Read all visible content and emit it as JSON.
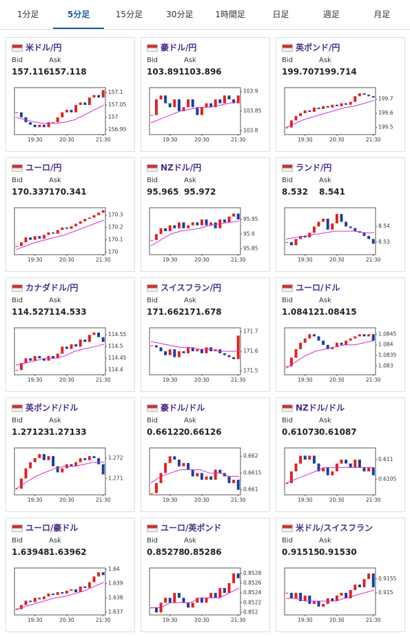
{
  "tabs": {
    "items": [
      "1分足",
      "5分足",
      "15分足",
      "30分足",
      "1時間足",
      "日足",
      "週足",
      "月足"
    ],
    "active": 1
  },
  "labels": {
    "bid": "Bid",
    "ask": "Ask"
  },
  "xticks": [
    {
      "value": 4,
      "label": "19:30"
    },
    {
      "value": 11,
      "label": "20:30"
    },
    {
      "value": 19,
      "label": "21:30"
    }
  ],
  "pairs": [
    {
      "name": "米ドル/円",
      "bid": "157.116",
      "ask": "157.118",
      "ylim": [
        156.93,
        157.12
      ],
      "yticks": [
        156.95,
        157,
        157.05,
        157.1
      ],
      "closes": [
        157.02,
        157.0,
        156.98,
        156.97,
        156.96,
        156.97,
        156.96,
        156.98,
        156.98,
        157.0,
        157.02,
        157.03,
        157.02,
        157.05,
        157.06,
        157.05,
        157.08,
        157.09,
        157.08,
        157.11
      ],
      "ma": [
        157.0,
        156.99,
        156.98,
        156.975,
        156.975,
        156.98,
        156.99,
        157.01,
        157.03,
        157.05
      ]
    },
    {
      "name": "豪ドル/円",
      "bid": "103.891",
      "ask": "103.896",
      "ylim": [
        103.79,
        103.91
      ],
      "yticks": [
        103.8,
        103.85,
        103.9
      ],
      "closes": [
        103.84,
        103.88,
        103.89,
        103.87,
        103.86,
        103.88,
        103.85,
        103.86,
        103.88,
        103.86,
        103.84,
        103.86,
        103.87,
        103.86,
        103.88,
        103.87,
        103.89,
        103.88,
        103.87,
        103.89
      ],
      "ma": [
        103.82,
        103.83,
        103.84,
        103.85,
        103.855,
        103.86,
        103.86,
        103.865,
        103.87,
        103.875
      ]
    },
    {
      "name": "英ポンド/円",
      "bid": "199.707",
      "ask": "199.714",
      "ylim": [
        199.45,
        199.78
      ],
      "yticks": [
        199.5,
        199.6,
        199.7
      ],
      "closes": [
        199.5,
        199.55,
        199.58,
        199.6,
        199.62,
        199.61,
        199.64,
        199.63,
        199.65,
        199.64,
        199.66,
        199.65,
        199.67,
        199.66,
        199.68,
        199.72,
        199.74,
        199.73,
        199.72,
        199.71
      ],
      "ma": [
        199.5,
        199.53,
        199.56,
        199.58,
        199.6,
        199.62,
        199.64,
        199.65,
        199.67,
        199.69
      ]
    },
    {
      "name": "ユーロ/円",
      "bid": "170.337",
      "ask": "170.341",
      "ylim": [
        169.98,
        170.36
      ],
      "yticks": [
        170,
        170.1,
        170.2,
        170.3
      ],
      "closes": [
        170.05,
        170.08,
        170.12,
        170.1,
        170.13,
        170.11,
        170.14,
        170.16,
        170.15,
        170.18,
        170.2,
        170.19,
        170.21,
        170.23,
        170.25,
        170.27,
        170.28,
        170.3,
        170.32,
        170.34
      ],
      "ma": [
        170.02,
        170.05,
        170.08,
        170.1,
        170.12,
        170.14,
        170.17,
        170.2,
        170.23,
        170.26
      ]
    },
    {
      "name": "NZドル/円",
      "bid": "95.965",
      "ask": "95.972",
      "ylim": [
        95.83,
        95.99
      ],
      "yticks": [
        95.85,
        95.9,
        95.95
      ],
      "closes": [
        95.88,
        95.9,
        95.92,
        95.91,
        95.93,
        95.92,
        95.94,
        95.92,
        95.93,
        95.94,
        95.93,
        95.95,
        95.93,
        95.94,
        95.92,
        95.95,
        95.94,
        95.96,
        95.97,
        95.95
      ],
      "ma": [
        95.86,
        95.88,
        95.9,
        95.91,
        95.915,
        95.92,
        95.93,
        95.935,
        95.94,
        95.945
      ]
    },
    {
      "name": "ランド/円",
      "bid": "8.532",
      "ask": "8.541",
      "ylim": [
        8.522,
        8.552
      ],
      "yticks": [
        8.53,
        8.54
      ],
      "closes": [
        8.53,
        8.528,
        8.532,
        8.534,
        8.533,
        8.536,
        8.54,
        8.543,
        8.545,
        8.538,
        8.542,
        8.548,
        8.543,
        8.54,
        8.539,
        8.537,
        8.536,
        8.534,
        8.532,
        8.529
      ],
      "ma": [
        8.532,
        8.533,
        8.534,
        8.535,
        8.536,
        8.537,
        8.537,
        8.537,
        8.536,
        8.536
      ]
    },
    {
      "name": "カナダドル/円",
      "bid": "114.527",
      "ask": "114.533",
      "ylim": [
        114.38,
        114.58
      ],
      "yticks": [
        114.4,
        114.45,
        114.5,
        114.55
      ],
      "closes": [
        114.4,
        114.43,
        114.45,
        114.44,
        114.46,
        114.45,
        114.44,
        114.46,
        114.45,
        114.47,
        114.5,
        114.49,
        114.51,
        114.5,
        114.53,
        114.52,
        114.55,
        114.56,
        114.54,
        114.52
      ],
      "ma": [
        114.42,
        114.43,
        114.44,
        114.45,
        114.45,
        114.46,
        114.48,
        114.49,
        114.5,
        114.51
      ]
    },
    {
      "name": "スイスフラン/円",
      "bid": "171.662",
      "ask": "171.678",
      "ylim": [
        171.48,
        171.72
      ],
      "yticks": [
        171.5,
        171.6,
        171.7
      ],
      "closes": [
        171.63,
        171.62,
        171.6,
        171.58,
        171.61,
        171.57,
        171.6,
        171.59,
        171.62,
        171.6,
        171.61,
        171.59,
        171.62,
        171.6,
        171.61,
        171.59,
        171.58,
        171.57,
        171.56,
        171.68
      ],
      "ma": [
        171.65,
        171.64,
        171.63,
        171.62,
        171.62,
        171.61,
        171.61,
        171.6,
        171.6,
        171.6
      ]
    },
    {
      "name": "ユーロ/ドル",
      "bid": "1.08412",
      "ask": "1.08415",
      "ylim": [
        1.0826,
        1.0848
      ],
      "yticks": [
        1.083,
        1.0835,
        1.084,
        1.0845
      ],
      "closes": [
        1.083,
        1.0834,
        1.0838,
        1.0841,
        1.0843,
        1.0845,
        1.0844,
        1.0842,
        1.084,
        1.0838,
        1.0839,
        1.0841,
        1.084,
        1.0842,
        1.0843,
        1.0844,
        1.0845,
        1.0844,
        1.0845,
        1.0842
      ],
      "ma": [
        1.0829,
        1.0832,
        1.0835,
        1.0837,
        1.0838,
        1.0839,
        1.084,
        1.084,
        1.0841,
        1.0842
      ]
    },
    {
      "name": "英ポンド/ドル",
      "bid": "1.27123",
      "ask": "1.27133",
      "ylim": [
        1.2702,
        1.2725
      ],
      "yticks": [
        1.271,
        1.272
      ],
      "closes": [
        1.2705,
        1.271,
        1.2715,
        1.2718,
        1.272,
        1.2722,
        1.2719,
        1.2721,
        1.2716,
        1.2713,
        1.2715,
        1.2717,
        1.2716,
        1.2718,
        1.272,
        1.2719,
        1.2721,
        1.272,
        1.2717,
        1.2712
      ],
      "ma": [
        1.2705,
        1.2708,
        1.2711,
        1.2713,
        1.2715,
        1.2716,
        1.2716,
        1.2717,
        1.2718,
        1.2718
      ]
    },
    {
      "name": "豪ドル/ドル",
      "bid": "0.66122",
      "ask": "0.66126",
      "ylim": [
        0.66085,
        0.66225
      ],
      "yticks": [
        0.661,
        0.6615,
        0.662
      ],
      "closes": [
        0.6609,
        0.6612,
        0.6615,
        0.6618,
        0.662,
        0.6619,
        0.6617,
        0.6618,
        0.6616,
        0.6614,
        0.6615,
        0.6613,
        0.6614,
        0.6613,
        0.6616,
        0.6615,
        0.6614,
        0.6612,
        0.6613,
        0.661
      ],
      "ma": [
        0.6612,
        0.6614,
        0.6615,
        0.6616,
        0.6616,
        0.6616,
        0.6615,
        0.6615,
        0.6614,
        0.6614
      ]
    },
    {
      "name": "NZドル/ドル",
      "bid": "0.61073",
      "ask": "0.61087",
      "ylim": [
        0.6101,
        0.6113
      ],
      "yticks": [
        0.6105,
        0.611
      ],
      "closes": [
        0.6104,
        0.6107,
        0.6109,
        0.6111,
        0.611,
        0.6111,
        0.6109,
        0.6107,
        0.6108,
        0.6106,
        0.6107,
        0.6109,
        0.611,
        0.6109,
        0.6108,
        0.611,
        0.6108,
        0.6107,
        0.6108,
        0.6106
      ],
      "ma": [
        0.6104,
        0.6105,
        0.6106,
        0.6107,
        0.6108,
        0.6108,
        0.6108,
        0.6108,
        0.6108,
        0.6108
      ]
    },
    {
      "name": "ユーロ/豪ドル",
      "bid": "1.63948",
      "ask": "1.63962",
      "ylim": [
        1.6368,
        1.6401
      ],
      "yticks": [
        1.637,
        1.638,
        1.639,
        1.64
      ],
      "closes": [
        1.6372,
        1.6375,
        1.6378,
        1.6377,
        1.638,
        1.6379,
        1.6381,
        1.6383,
        1.6382,
        1.6384,
        1.6383,
        1.6385,
        1.6386,
        1.6384,
        1.6388,
        1.6387,
        1.6391,
        1.6395,
        1.6398,
        1.6396
      ],
      "ma": [
        1.6372,
        1.6374,
        1.6376,
        1.6378,
        1.638,
        1.6381,
        1.6383,
        1.6385,
        1.6388,
        1.6391
      ]
    },
    {
      "name": "ユーロ/英ポンド",
      "bid": "0.85278",
      "ask": "0.85286",
      "ylim": [
        0.85195,
        0.85291
      ],
      "yticks": [
        0.852,
        0.8522,
        0.8524,
        0.8526,
        0.8528
      ],
      "closes": [
        0.8521,
        0.852,
        0.8522,
        0.8523,
        0.8522,
        0.8524,
        0.8523,
        0.8522,
        0.8521,
        0.8522,
        0.8523,
        0.8522,
        0.8523,
        0.8524,
        0.8523,
        0.8525,
        0.8524,
        0.8526,
        0.8528,
        0.8527
      ],
      "ma": [
        0.8521,
        0.8521,
        0.8522,
        0.8522,
        0.8522,
        0.8523,
        0.8523,
        0.8523,
        0.8524,
        0.8525
      ]
    },
    {
      "name": "米ドル/スイスフラン",
      "bid": "0.91515",
      "ask": "0.91530",
      "ylim": [
        0.9142,
        0.9159
      ],
      "yticks": [
        0.915,
        0.9155
      ],
      "closes": [
        0.915,
        0.9148,
        0.915,
        0.9147,
        0.9149,
        0.9146,
        0.9147,
        0.9145,
        0.9146,
        0.9148,
        0.9147,
        0.9149,
        0.915,
        0.9148,
        0.9151,
        0.9153,
        0.9152,
        0.9155,
        0.9157,
        0.9152
      ],
      "ma": [
        0.9148,
        0.9148,
        0.9147,
        0.9147,
        0.9147,
        0.9147,
        0.9148,
        0.9149,
        0.915,
        0.9151
      ]
    }
  ]
}
